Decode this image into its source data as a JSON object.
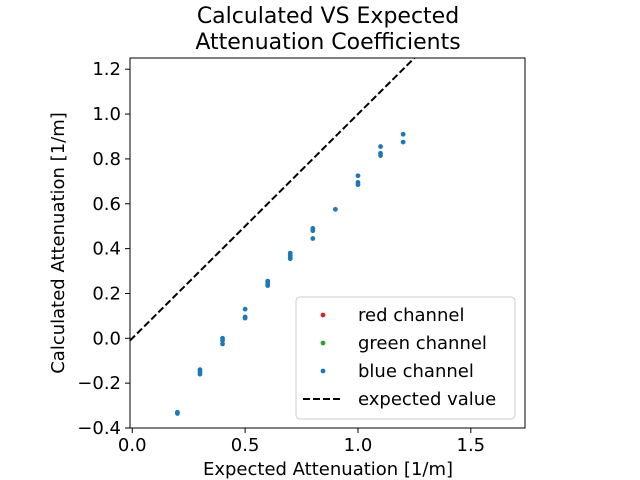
{
  "chart_data": {
    "type": "scatter",
    "title_lines": [
      "Calculated VS Expected",
      "Attenuation Coefficients"
    ],
    "xlabel": "Expected Attenuation [1/m]",
    "ylabel": "Calculated Attenuation [1/m]",
    "xlim": [
      -0.01,
      1.74
    ],
    "ylim": [
      -0.4,
      1.25
    ],
    "xticks": [
      0.0,
      0.5,
      1.0,
      1.5
    ],
    "xtick_labels": [
      "0.0",
      "0.5",
      "1.0",
      "1.5"
    ],
    "yticks": [
      -0.4,
      -0.2,
      0.0,
      0.2,
      0.4,
      0.6,
      0.8,
      1.0,
      1.2
    ],
    "ytick_labels": [
      "−0.4",
      "−0.2",
      "0.0",
      "0.2",
      "0.4",
      "0.6",
      "0.8",
      "1.0",
      "1.2"
    ],
    "grid": false,
    "legend_position": "lower-right",
    "series": [
      {
        "name": "red channel",
        "color": "#d62728",
        "points": []
      },
      {
        "name": "green channel",
        "color": "#2ca02c",
        "points": []
      },
      {
        "name": "blue channel",
        "color": "#1f77b4",
        "points": [
          [
            0.2,
            -0.33
          ],
          [
            0.2,
            -0.335
          ],
          [
            0.3,
            -0.14
          ],
          [
            0.3,
            -0.15
          ],
          [
            0.3,
            -0.16
          ],
          [
            0.4,
            0.0
          ],
          [
            0.4,
            -0.01
          ],
          [
            0.4,
            -0.025
          ],
          [
            0.5,
            0.13
          ],
          [
            0.5,
            0.095
          ],
          [
            0.5,
            0.09
          ],
          [
            0.6,
            0.255
          ],
          [
            0.6,
            0.245
          ],
          [
            0.6,
            0.235
          ],
          [
            0.7,
            0.38
          ],
          [
            0.7,
            0.37
          ],
          [
            0.7,
            0.36
          ],
          [
            0.7,
            0.355
          ],
          [
            0.8,
            0.49
          ],
          [
            0.8,
            0.48
          ],
          [
            0.8,
            0.445
          ],
          [
            0.9,
            0.575
          ],
          [
            1.0,
            0.725
          ],
          [
            1.0,
            0.695
          ],
          [
            1.0,
            0.685
          ],
          [
            1.1,
            0.855
          ],
          [
            1.1,
            0.825
          ],
          [
            1.1,
            0.815
          ],
          [
            1.2,
            0.91
          ],
          [
            1.2,
            0.875
          ]
        ]
      }
    ],
    "reference_line": {
      "name": "expected value",
      "color": "#000000",
      "style": "dashed",
      "slope": 1,
      "intercept": 0
    }
  }
}
